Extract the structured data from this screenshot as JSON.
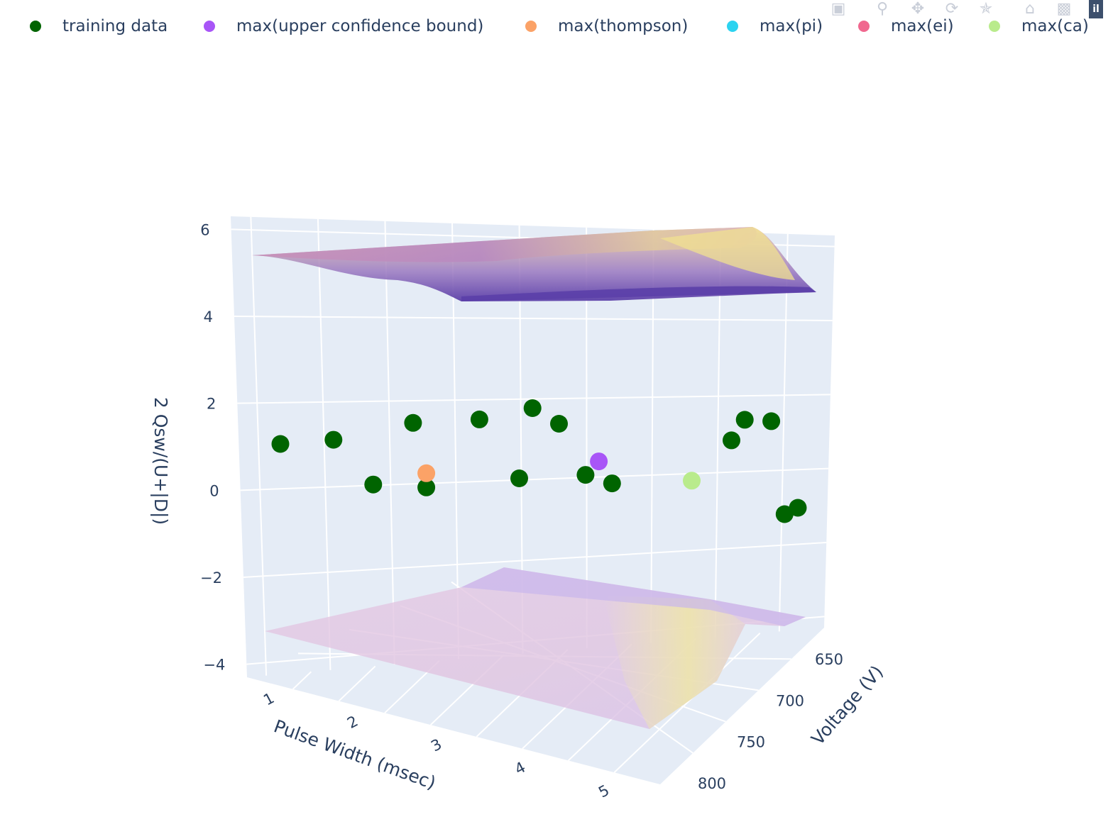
{
  "legend": {
    "items": [
      {
        "label": "training data",
        "color": "#006400"
      },
      {
        "label": "max(upper confidence bound)",
        "color": "#a855f7"
      },
      {
        "label": "max(thompson)",
        "color": "#fba267"
      },
      {
        "label": "max(pi)",
        "color": "#2cd3f0"
      },
      {
        "label": "max(ei)",
        "color": "#f0688f"
      },
      {
        "label": "max(ca)",
        "color": "#b9eb8c"
      }
    ]
  },
  "modebar": {
    "icons": [
      "camera-icon",
      "zoom-icon",
      "pan-icon",
      "orbit-rotate-icon",
      "turntable-rotate-icon",
      "home-icon",
      "camera-view-icon",
      "plotly-logo-icon"
    ]
  },
  "chart_data": {
    "type": "scatter3d",
    "title": "",
    "axes": {
      "x": {
        "label": "Pulse Width (msec)",
        "ticks": [
          "1",
          "2",
          "3",
          "4",
          "5"
        ]
      },
      "y": {
        "label": "Voltage (V)",
        "ticks": [
          "650",
          "700",
          "750",
          "800"
        ]
      },
      "z": {
        "label": "2 Qsw/(U+|D|)",
        "ticks": [
          "−4",
          "−2",
          "0",
          "2",
          "4",
          "6"
        ],
        "range": [
          -4.3,
          6.3
        ]
      }
    },
    "series": [
      {
        "name": "training data",
        "color": "#006400",
        "points": [
          {
            "x": 1.1,
            "y": 700,
            "z": 1.0
          },
          {
            "x": 1.5,
            "y": 700,
            "z": 1.1
          },
          {
            "x": 1.8,
            "y": 700,
            "z": 0.5
          },
          {
            "x": 2.1,
            "y": 700,
            "z": 1.4
          },
          {
            "x": 2.2,
            "y": 700,
            "z": 0.5
          },
          {
            "x": 2.6,
            "y": 700,
            "z": 1.5
          },
          {
            "x": 2.9,
            "y": 700,
            "z": 0.7
          },
          {
            "x": 3.0,
            "y": 700,
            "z": 1.7
          },
          {
            "x": 3.2,
            "y": 700,
            "z": 1.5
          },
          {
            "x": 3.4,
            "y": 700,
            "z": 0.8
          },
          {
            "x": 3.6,
            "y": 700,
            "z": 0.7
          },
          {
            "x": 4.5,
            "y": 700,
            "z": 1.4
          },
          {
            "x": 4.6,
            "y": 700,
            "z": 1.7
          },
          {
            "x": 4.8,
            "y": 700,
            "z": 1.7
          },
          {
            "x": 4.9,
            "y": 700,
            "z": 0.4
          },
          {
            "x": 5.0,
            "y": 700,
            "z": 0.5
          }
        ]
      },
      {
        "name": "max(upper confidence bound)",
        "color": "#a855f7",
        "points": [
          {
            "x": 3.5,
            "y": 700,
            "z": 1.0
          }
        ]
      },
      {
        "name": "max(thompson)",
        "color": "#fba267",
        "points": [
          {
            "x": 2.2,
            "y": 700,
            "z": 0.7
          }
        ]
      },
      {
        "name": "max(pi)",
        "color": "#2cd3f0",
        "points": []
      },
      {
        "name": "max(ei)",
        "color": "#f0688f",
        "points": []
      },
      {
        "name": "max(ca)",
        "color": "#b9eb8c",
        "points": [
          {
            "x": 4.2,
            "y": 700,
            "z": 0.8
          }
        ]
      }
    ],
    "surfaces": [
      {
        "name": "upper surface",
        "z_approx": 5.0,
        "colors": [
          "#5b3fa8",
          "#a87cc0",
          "#d8a0a8",
          "#f0e08c"
        ]
      },
      {
        "name": "lower surface",
        "z_approx": -3.6,
        "colors": [
          "#c9b0e6",
          "#e2c4e0",
          "#f2eaa0"
        ]
      }
    ]
  }
}
